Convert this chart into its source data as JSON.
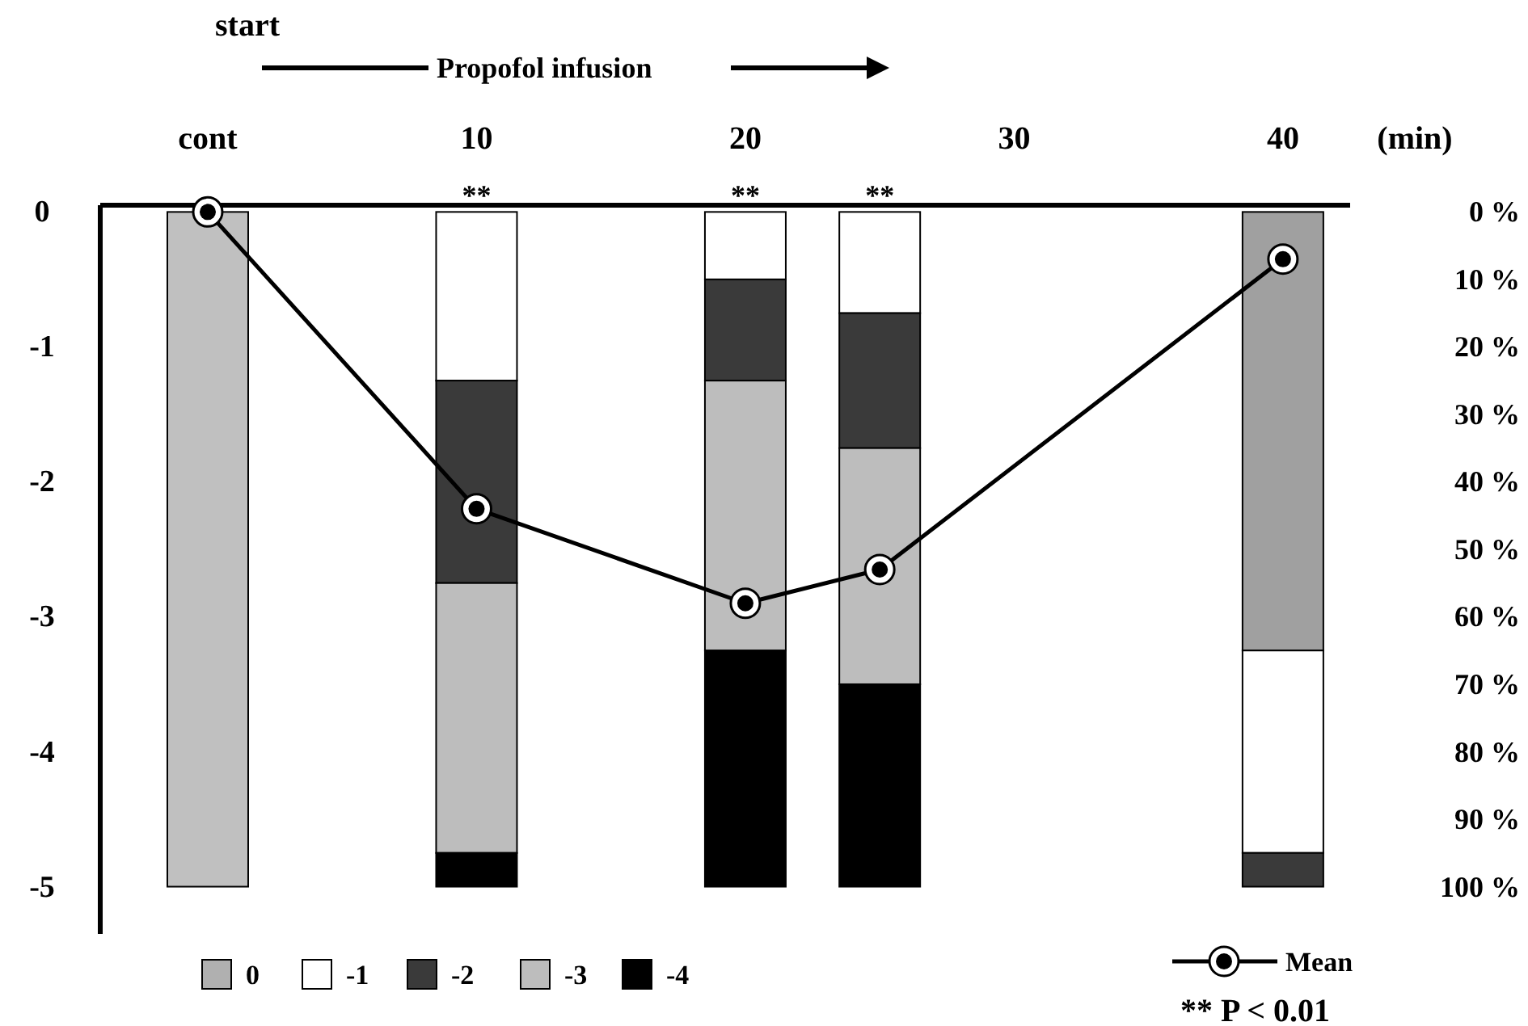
{
  "chart_data": {
    "type": "bar",
    "stacked": true,
    "xlabel": "(min)",
    "x": [
      0,
      10,
      20,
      25,
      40
    ],
    "xlim": [
      -4,
      42.5
    ],
    "xticks": [
      {
        "value": 0,
        "label": "cont"
      },
      10,
      20,
      30,
      40
    ],
    "ylim": [
      -5.35,
      0.05
    ],
    "yticks": [
      0,
      -1,
      -2,
      -3,
      -4,
      -5
    ],
    "y2lim": [
      107,
      -1
    ],
    "y2ticks": [
      {
        "value": 0,
        "label": "0 %"
      },
      {
        "value": 10,
        "label": "10 %"
      },
      {
        "value": 20,
        "label": "20 %"
      },
      {
        "value": 30,
        "label": "30 %"
      },
      {
        "value": 40,
        "label": "40 %"
      },
      {
        "value": 50,
        "label": "50 %"
      },
      {
        "value": 60,
        "label": "60 %"
      },
      {
        "value": 70,
        "label": "70 %"
      },
      {
        "value": 80,
        "label": "80 %"
      },
      {
        "value": 90,
        "label": "90 %"
      },
      {
        "value": 100,
        "label": "100 %"
      }
    ],
    "series": [
      {
        "name": "0",
        "axis": "y2",
        "color": "#b0b0b0",
        "colors": [
          "#c0c0c0",
          null,
          null,
          null,
          "#a0a0a0"
        ],
        "values": [
          100,
          null,
          null,
          null,
          65
        ]
      },
      {
        "name": "-1",
        "axis": "y2",
        "color": "#ffffff",
        "values": [
          null,
          25,
          10,
          15,
          30
        ]
      },
      {
        "name": "-2",
        "axis": "y2",
        "color": "#3a3a3a",
        "values": [
          null,
          30,
          15,
          20,
          5
        ]
      },
      {
        "name": "-3",
        "axis": "y2",
        "color": "#bdbdbd",
        "values": [
          null,
          40,
          40,
          35,
          null
        ]
      },
      {
        "name": "-4",
        "axis": "y2",
        "color": "#000000",
        "values": [
          null,
          5,
          35,
          30,
          null
        ]
      },
      {
        "name": "Mean",
        "type": "line",
        "axis": "y",
        "color": "#000000",
        "marker": "circle",
        "values": [
          0,
          -2.2,
          -2.9,
          -2.65,
          -0.35
        ]
      }
    ],
    "annotations": [
      "start",
      "Propofol infusion",
      {
        "text": "**",
        "x": 10,
        "y": 0
      },
      {
        "text": "**",
        "x": 20,
        "y": 0
      },
      {
        "text": "**",
        "x": 25,
        "y": 0
      },
      "** P < 0.01"
    ],
    "legend": "bottom"
  }
}
